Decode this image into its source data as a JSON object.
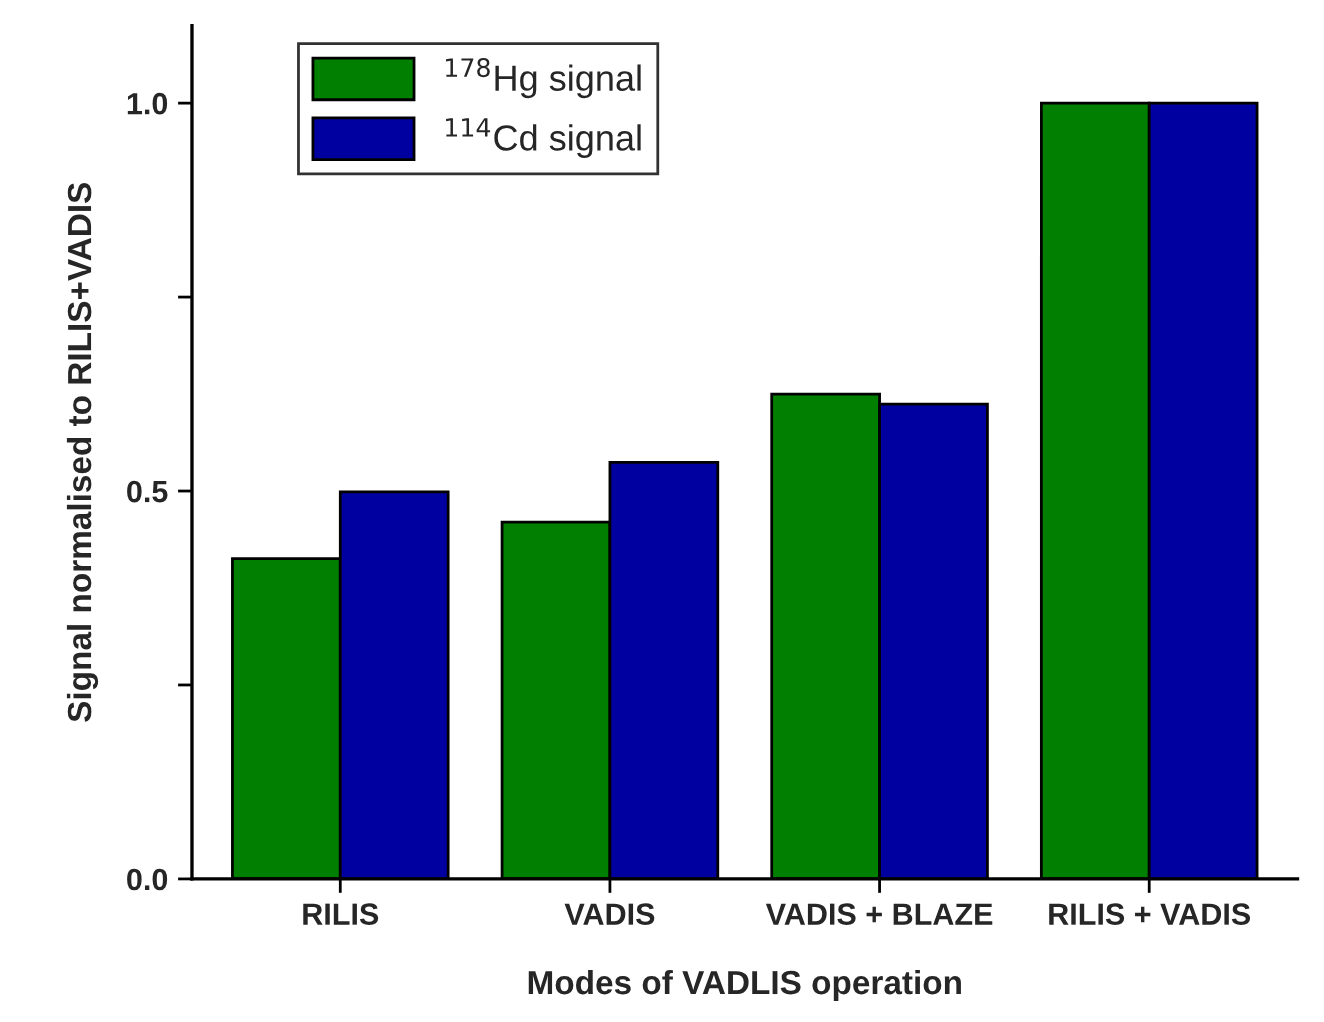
{
  "chart_data": {
    "type": "bar",
    "xlabel": "Modes of VADLIS operation",
    "ylabel": "Signal normalised to RILIS+VADIS",
    "categories": [
      "RILIS",
      "VADIS",
      "VADIS + BLAZE",
      "RILIS + VADIS"
    ],
    "series": [
      {
        "name": "$^{178}$Hg signal",
        "color": "#007f00",
        "values": [
          0.413,
          0.46,
          0.625,
          1.0
        ]
      },
      {
        "name": "$^{114}$Cd signal",
        "color": "#0000a0",
        "values": [
          0.499,
          0.537,
          0.612,
          1.0
        ]
      }
    ],
    "ylim": [
      0,
      1.1
    ],
    "yticks": [
      {
        "value": 0.0,
        "label": "0.0"
      },
      {
        "value": 0.25,
        "label": null
      },
      {
        "value": 0.5,
        "label": "0.5"
      },
      {
        "value": 0.75,
        "label": null
      },
      {
        "value": 1.0,
        "label": "1.0"
      }
    ],
    "legend": "top left",
    "grid": false
  }
}
